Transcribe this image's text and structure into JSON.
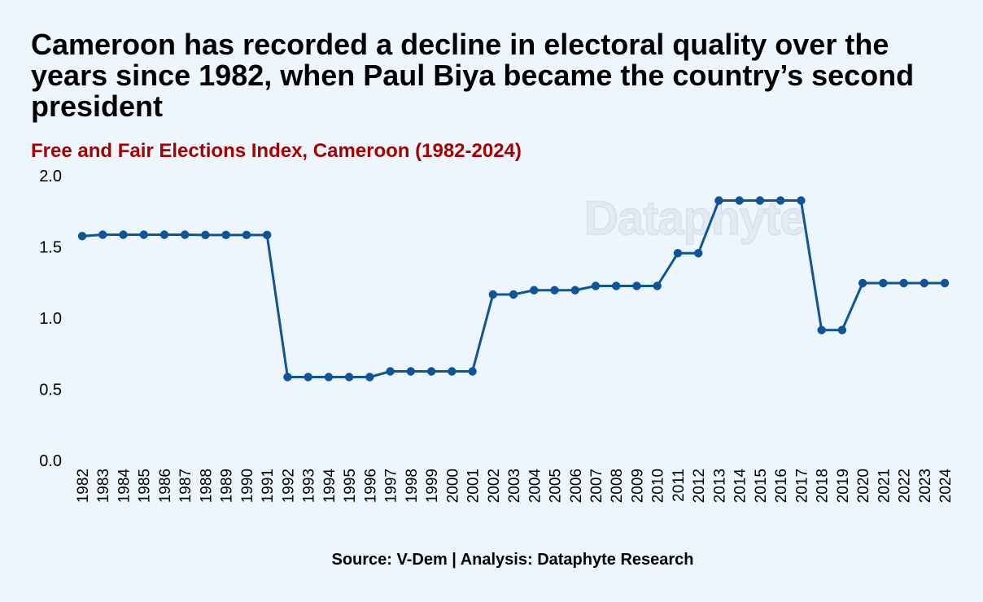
{
  "title": "Cameroon has recorded a decline in electoral quality over the years since 1982, when Paul Biya became the country’s second president",
  "subtitle": "Free and Fair Elections Index, Cameroon (1982-2024)",
  "source": "Source: V-Dem | Analysis: Dataphyte Research",
  "watermark": "Dataphyte",
  "colors": {
    "line": "#0f5496",
    "subtitle": "#a40000",
    "background": "#eef6fd"
  },
  "chart_data": {
    "type": "line",
    "title": "Free and Fair Elections Index, Cameroon (1982-2024)",
    "xlabel": "",
    "ylabel": "",
    "ylim": [
      0,
      2
    ],
    "yticks": [
      "0.0",
      "0.5",
      "1.0",
      "1.5",
      "2.0"
    ],
    "ytick_values": [
      0,
      0.5,
      1.0,
      1.5,
      2.0
    ],
    "grid": false,
    "categories": [
      "1982",
      "1983",
      "1984",
      "1985",
      "1986",
      "1987",
      "1988",
      "1989",
      "1990",
      "1991",
      "1992",
      "1993",
      "1994",
      "1995",
      "1996",
      "1997",
      "1998",
      "1999",
      "2000",
      "2001",
      "2002",
      "2003",
      "2004",
      "2005",
      "2006",
      "2007",
      "2008",
      "2009",
      "2010",
      "2011",
      "2012",
      "2013",
      "2014",
      "2015",
      "2016",
      "2017",
      "2018",
      "2019",
      "2020",
      "2021",
      "2022",
      "2023",
      "2024"
    ],
    "series": [
      {
        "name": "Free and Fair Elections Index",
        "values": [
          1.57,
          1.58,
          1.58,
          1.58,
          1.58,
          1.58,
          1.578,
          1.578,
          1.578,
          1.578,
          0.58,
          0.58,
          0.58,
          0.58,
          0.58,
          0.62,
          0.62,
          0.62,
          0.62,
          0.62,
          1.16,
          1.16,
          1.19,
          1.19,
          1.19,
          1.22,
          1.22,
          1.22,
          1.22,
          1.45,
          1.45,
          1.82,
          1.82,
          1.82,
          1.82,
          1.82,
          0.91,
          0.91,
          1.24,
          1.24,
          1.24,
          1.24,
          1.24
        ]
      }
    ]
  }
}
